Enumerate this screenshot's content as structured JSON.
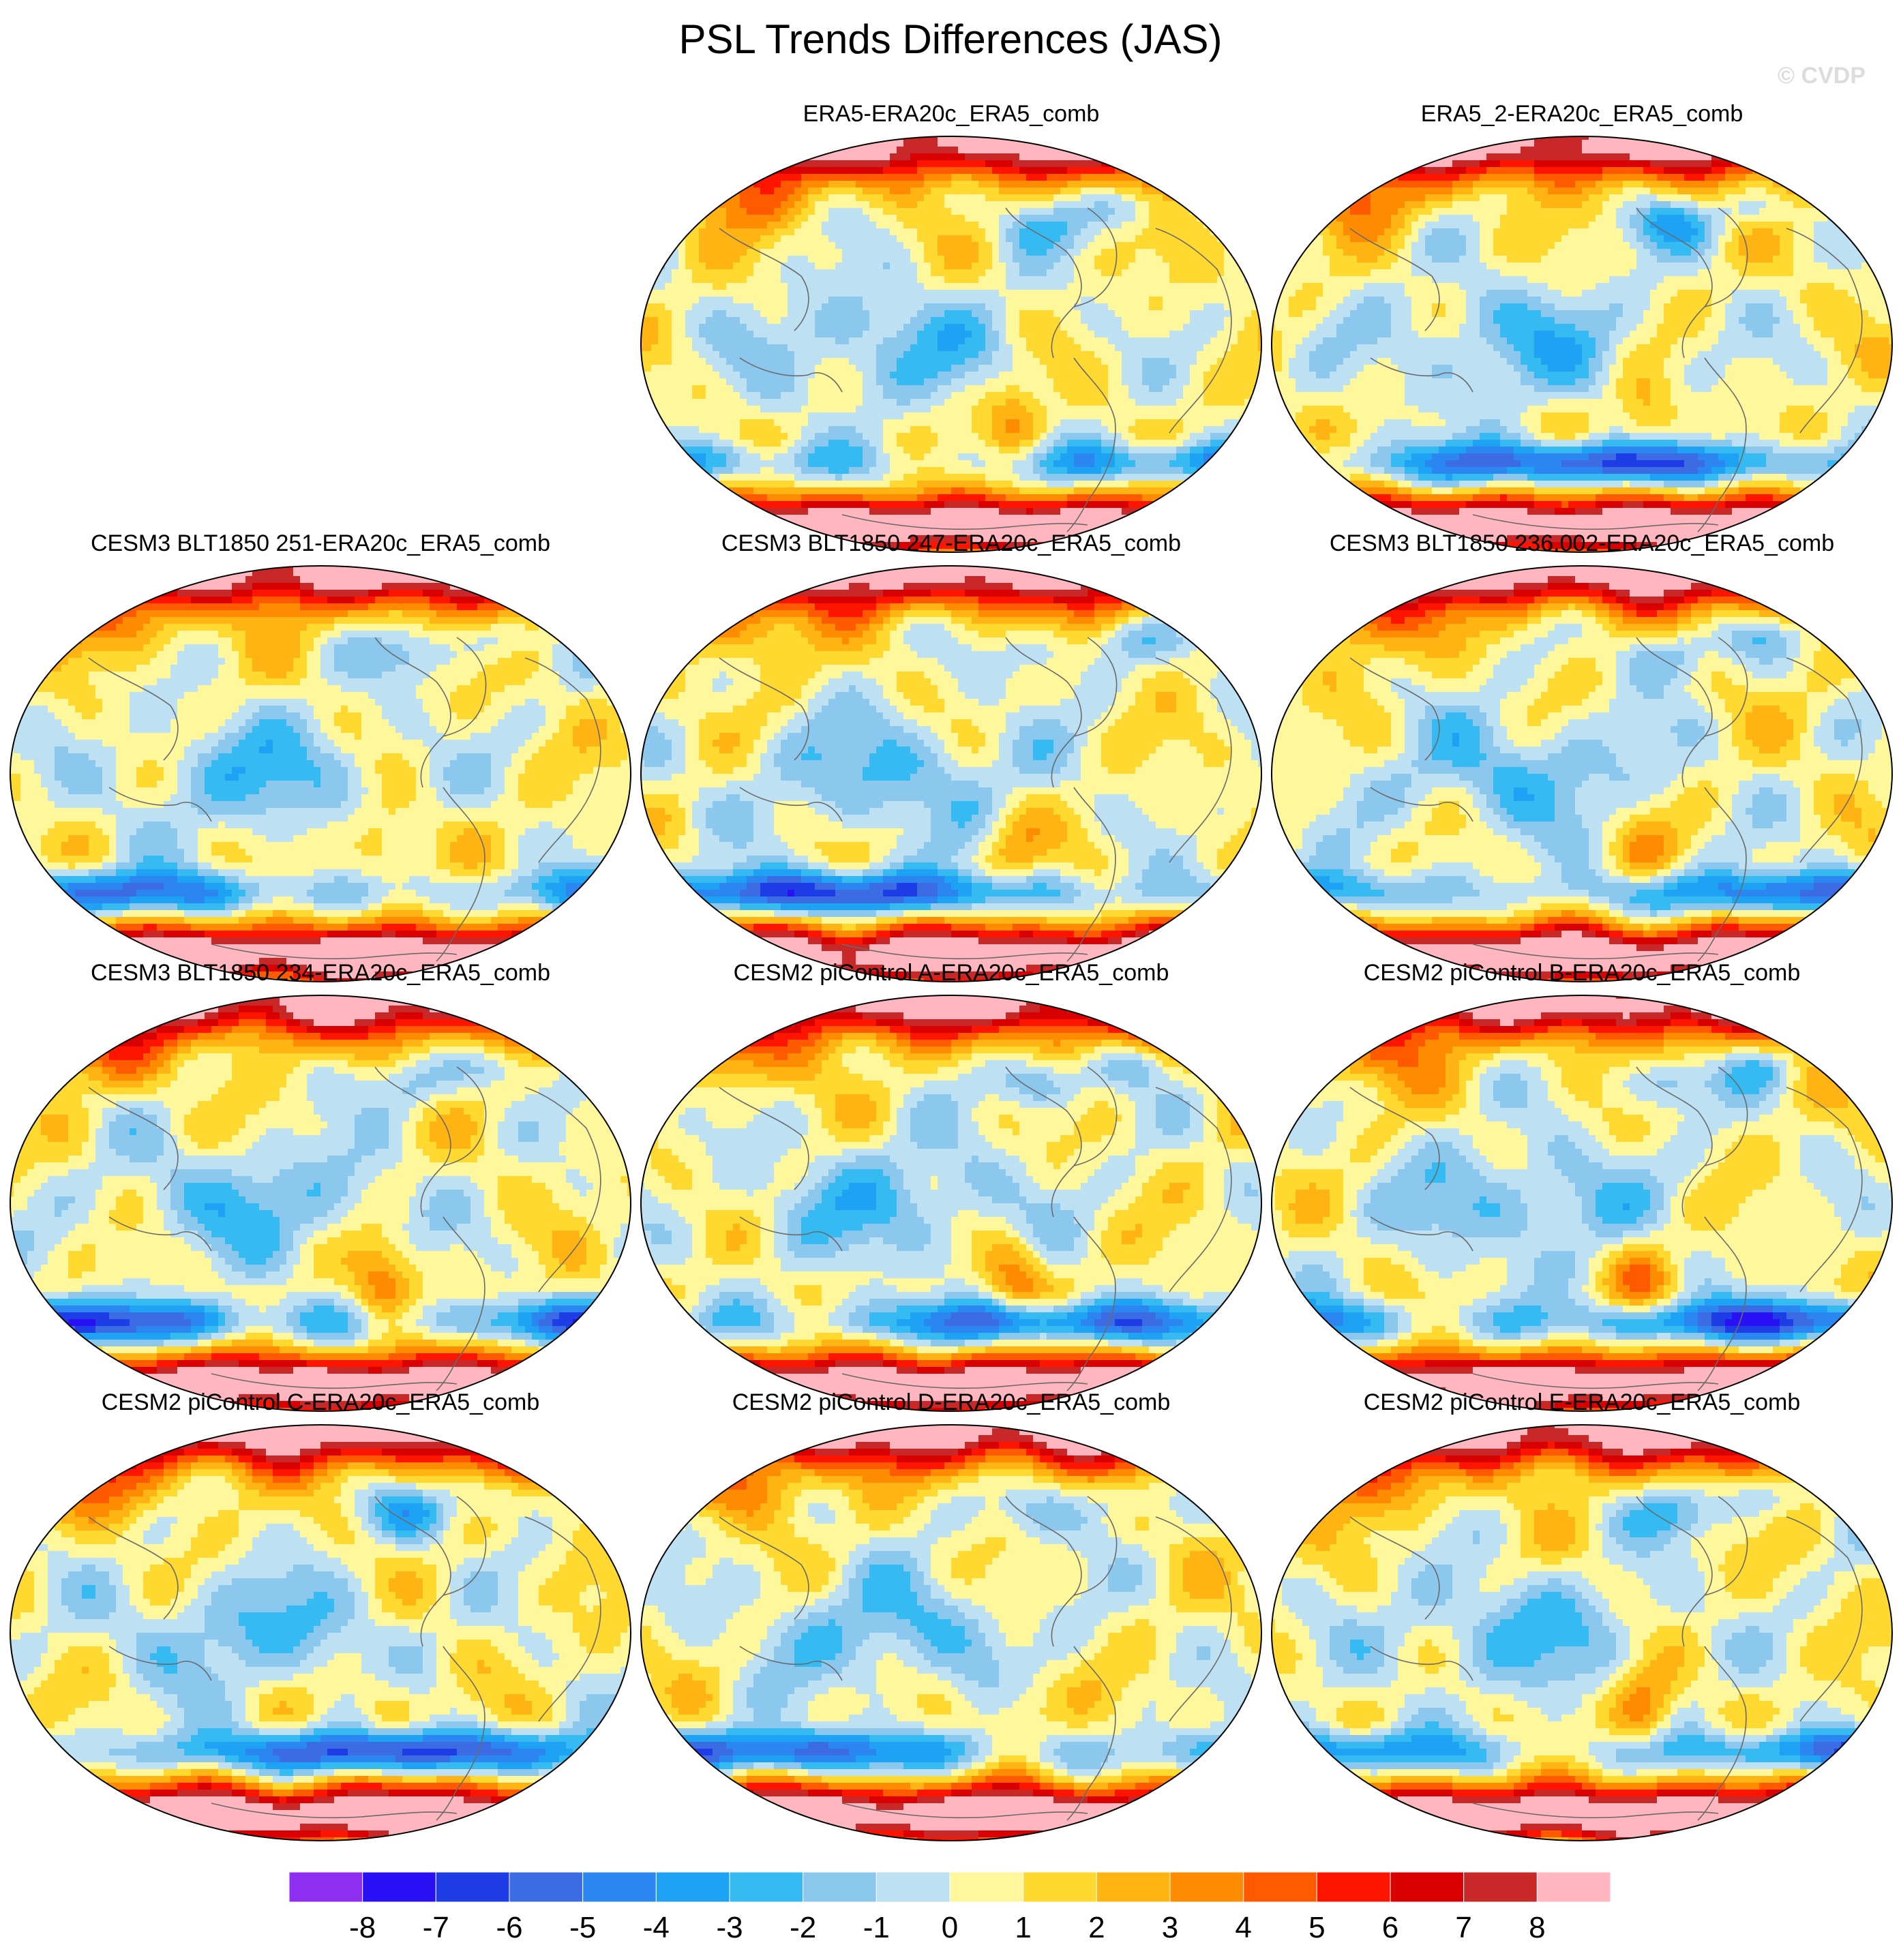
{
  "title": "PSL Trends Differences (JAS)",
  "watermark": "© CVDP",
  "palette": [
    "#8e2ff2",
    "#2a10f4",
    "#1e3de6",
    "#3c6ce4",
    "#2b86f2",
    "#1ea2f4",
    "#35bbf2",
    "#8cc8ee",
    "#bde1f2",
    "#fff79c",
    "#ffd830",
    "#ffb414",
    "#ff8c00",
    "#ff5a00",
    "#ff1400",
    "#d80000",
    "#c82828",
    "#ffb6be"
  ],
  "colorbar": {
    "labels": [
      "-8",
      "-7",
      "-6",
      "-5",
      "-4",
      "-3",
      "-2",
      "-1",
      "0",
      "1",
      "2",
      "3",
      "4",
      "5",
      "6",
      "7",
      "8"
    ]
  },
  "panels": [
    {
      "title": "ERA5-ERA20c_ERA5_comb",
      "seed": 3
    },
    {
      "title": "ERA5_2-ERA20c_ERA5_comb",
      "seed": 5
    },
    {
      "title": "CESM3 BLT1850 251-ERA20c_ERA5_comb",
      "seed": 7
    },
    {
      "title": "CESM3 BLT1850 247-ERA20c_ERA5_comb",
      "seed": 11
    },
    {
      "title": "CESM3 BLT1850 236.002-ERA20c_ERA5_comb",
      "seed": 13
    },
    {
      "title": "CESM3 BLT1850 234-ERA20c_ERA5_comb",
      "seed": 17
    },
    {
      "title": "CESM2 piControl A-ERA20c_ERA5_comb",
      "seed": 19
    },
    {
      "title": "CESM2 piControl B-ERA20c_ERA5_comb",
      "seed": 23
    },
    {
      "title": "CESM2 piControl C-ERA20c_ERA5_comb",
      "seed": 29
    },
    {
      "title": "CESM2 piControl D-ERA20c_ERA5_comb",
      "seed": 31
    },
    {
      "title": "CESM2 piControl E-ERA20c_ERA5_comb",
      "seed": 37
    }
  ]
}
